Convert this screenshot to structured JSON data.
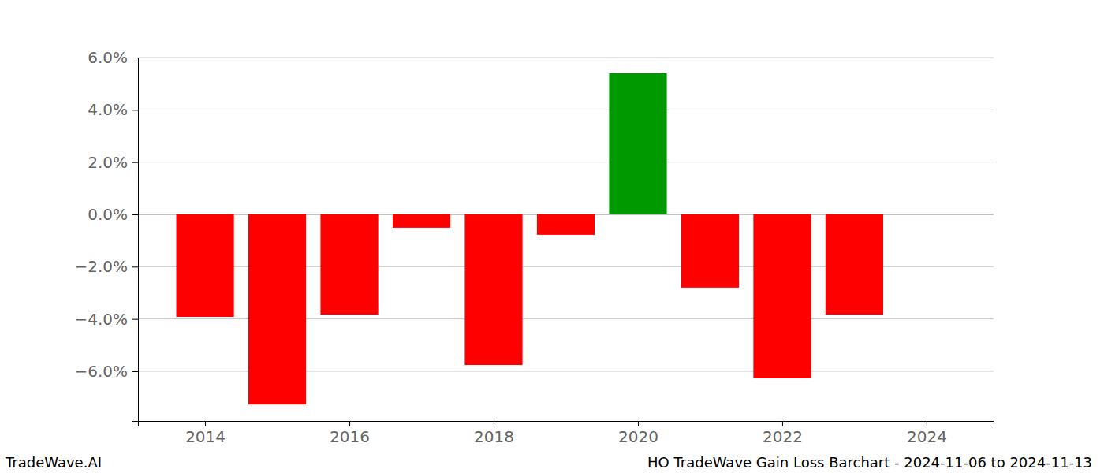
{
  "chart_data": {
    "type": "bar",
    "x": [
      2014,
      2015,
      2016,
      2017,
      2018,
      2019,
      2020,
      2021,
      2022,
      2023
    ],
    "values": [
      -3.92,
      -7.27,
      -3.83,
      -0.51,
      -5.76,
      -0.78,
      5.4,
      -2.8,
      -6.27,
      -3.83
    ],
    "colors": [
      "#ff0000",
      "#ff0000",
      "#ff0000",
      "#ff0000",
      "#ff0000",
      "#ff0000",
      "#009900",
      "#ff0000",
      "#ff0000",
      "#ff0000"
    ],
    "xlim": [
      2013.07,
      2024.93
    ],
    "xticks": [
      2014,
      2016,
      2018,
      2020,
      2022,
      2024
    ],
    "ylim": [
      -7.9,
      6.0
    ],
    "yticks": [
      {
        "value": -6,
        "label": "−6.0%"
      },
      {
        "value": -4,
        "label": "−4.0%"
      },
      {
        "value": -2,
        "label": "−2.0%"
      },
      {
        "value": 0,
        "label": "0.0%"
      },
      {
        "value": 2,
        "label": "2.0%"
      },
      {
        "value": 4,
        "label": "4.0%"
      },
      {
        "value": 6,
        "label": "6.0%"
      }
    ],
    "grid": true,
    "annotations": [
      "TradeWave.AI",
      "HO TradeWave Gain Loss Barchart - 2024-11-06 to 2024-11-13"
    ]
  }
}
